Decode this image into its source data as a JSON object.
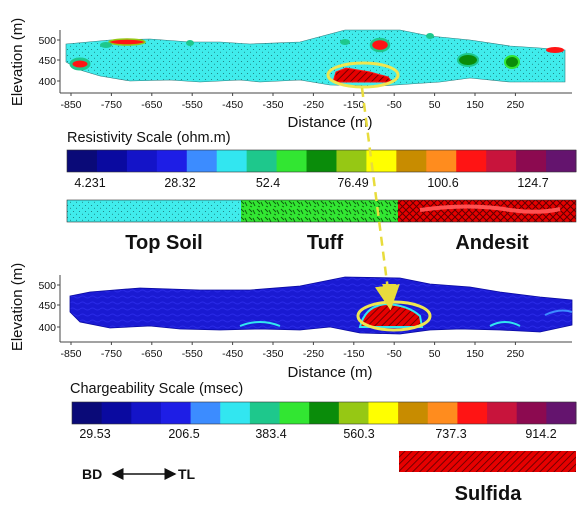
{
  "top_section": {
    "ylabel": "Elevation (m)",
    "xlabel": "Distance (m)",
    "y_ticks": [
      "500",
      "450",
      "400"
    ],
    "x_ticks": [
      "-850",
      "-750",
      "-650",
      "-550",
      "-450",
      "-350",
      "-250",
      "-150",
      "-50",
      "50",
      "150",
      "250"
    ]
  },
  "resistivity_scale": {
    "title": "Resistivity Scale (ohm.m)",
    "values": [
      "4.231",
      "28.32",
      "52.4",
      "76.49",
      "100.6",
      "124.7"
    ]
  },
  "lithology": {
    "top_soil": "Top Soil",
    "tuff": "Tuff",
    "andesit": "Andesit"
  },
  "bottom_section": {
    "ylabel": "Elevation (m)",
    "xlabel": "Distance (m)",
    "y_ticks": [
      "500",
      "450",
      "400"
    ],
    "x_ticks": [
      "-850",
      "-750",
      "-650",
      "-550",
      "-450",
      "-350",
      "-250",
      "-150",
      "-50",
      "50",
      "150",
      "250"
    ]
  },
  "chargeability_scale": {
    "title": "Chargeability Scale (msec)",
    "values": [
      "29.53",
      "206.5",
      "383.4",
      "560.3",
      "737.3",
      "914.2"
    ]
  },
  "direction": {
    "left": "BD",
    "right": "TL"
  },
  "sulfida_label": "Sulfida",
  "colors": {
    "color_scale": [
      "#0a0a78",
      "#0a0aa0",
      "#1414c8",
      "#1e1ee6",
      "#3c8cff",
      "#32e6f0",
      "#1ec88c",
      "#32e632",
      "#0a8c0a",
      "#96c814",
      "#ffff00",
      "#c88c00",
      "#ff8c1e",
      "#ff1414",
      "#c8143c",
      "#8c0a50",
      "#64146e"
    ],
    "cyan_background": "#40ecec",
    "highlight_yellow": "#f0e650",
    "hatch_red": "#e60000",
    "tuff_green": "#32e632"
  }
}
